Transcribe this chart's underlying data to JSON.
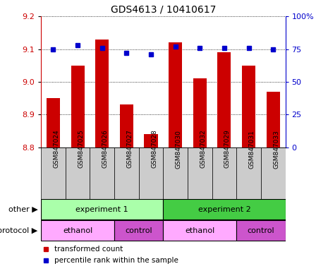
{
  "title": "GDS4613 / 10410617",
  "samples": [
    "GSM847024",
    "GSM847025",
    "GSM847026",
    "GSM847027",
    "GSM847028",
    "GSM847030",
    "GSM847032",
    "GSM847029",
    "GSM847031",
    "GSM847033"
  ],
  "bar_values": [
    8.95,
    9.05,
    9.13,
    8.93,
    8.84,
    9.12,
    9.01,
    9.09,
    9.05,
    8.97
  ],
  "dot_values": [
    75,
    78,
    76,
    72,
    71,
    77,
    76,
    76,
    76,
    75
  ],
  "ylim_left": [
    8.8,
    9.2
  ],
  "ylim_right": [
    0,
    100
  ],
  "yticks_left": [
    8.8,
    8.9,
    9.0,
    9.1,
    9.2
  ],
  "yticks_right": [
    0,
    25,
    50,
    75,
    100
  ],
  "bar_color": "#cc0000",
  "dot_color": "#0000cc",
  "bar_bottom": 8.8,
  "groups_other": [
    {
      "label": "experiment 1",
      "start": 0,
      "end": 4,
      "color": "#aaffaa"
    },
    {
      "label": "experiment 2",
      "start": 5,
      "end": 9,
      "color": "#44cc44"
    }
  ],
  "groups_protocol": [
    {
      "label": "ethanol",
      "start": 0,
      "end": 2,
      "color": "#ffaaff"
    },
    {
      "label": "control",
      "start": 3,
      "end": 4,
      "color": "#cc55cc"
    },
    {
      "label": "ethanol",
      "start": 5,
      "end": 7,
      "color": "#ffaaff"
    },
    {
      "label": "control",
      "start": 8,
      "end": 9,
      "color": "#cc55cc"
    }
  ],
  "legend_items": [
    {
      "label": "transformed count",
      "color": "#cc0000"
    },
    {
      "label": "percentile rank within the sample",
      "color": "#0000cc"
    }
  ],
  "other_label": "other",
  "protocol_label": "protocol",
  "tick_label_color_left": "#cc0000",
  "tick_label_color_right": "#0000cc",
  "bg_color": "#ffffff",
  "sample_bg_color": "#cccccc",
  "grid_color": "#000000"
}
